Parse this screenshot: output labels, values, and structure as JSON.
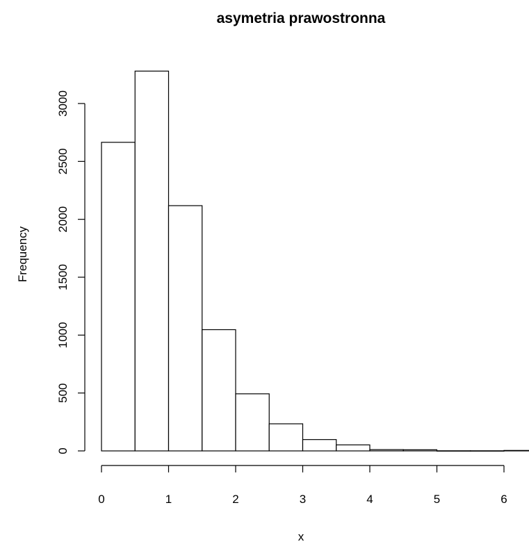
{
  "chart_data": {
    "type": "bar",
    "title": "asymetria prawostronna",
    "xlabel": "x",
    "ylabel": "Frequency",
    "bins": [
      {
        "x0": 0.0,
        "x1": 0.5,
        "value": 2665
      },
      {
        "x0": 0.5,
        "x1": 1.0,
        "value": 3280
      },
      {
        "x0": 1.0,
        "x1": 1.5,
        "value": 2118
      },
      {
        "x0": 1.5,
        "x1": 2.0,
        "value": 1047
      },
      {
        "x0": 2.0,
        "x1": 2.5,
        "value": 493
      },
      {
        "x0": 2.5,
        "x1": 3.0,
        "value": 234
      },
      {
        "x0": 3.0,
        "x1": 3.5,
        "value": 98
      },
      {
        "x0": 3.5,
        "x1": 4.0,
        "value": 52
      },
      {
        "x0": 4.0,
        "x1": 4.5,
        "value": 11
      },
      {
        "x0": 4.5,
        "x1": 5.0,
        "value": 10
      },
      {
        "x0": 5.0,
        "x1": 5.5,
        "value": 1
      },
      {
        "x0": 5.5,
        "x1": 6.0,
        "value": 1
      },
      {
        "x0": 6.0,
        "x1": 6.5,
        "value": 4
      }
    ],
    "xticks": [
      0,
      1,
      2,
      3,
      4,
      5,
      6
    ],
    "yticks": [
      0,
      500,
      1000,
      1500,
      2000,
      2500,
      3000
    ],
    "xlim": [
      0,
      6.5
    ],
    "ylim": [
      0,
      3280
    ],
    "grid": false,
    "bar_fill": "#ffffff",
    "bar_stroke": "#000000"
  }
}
